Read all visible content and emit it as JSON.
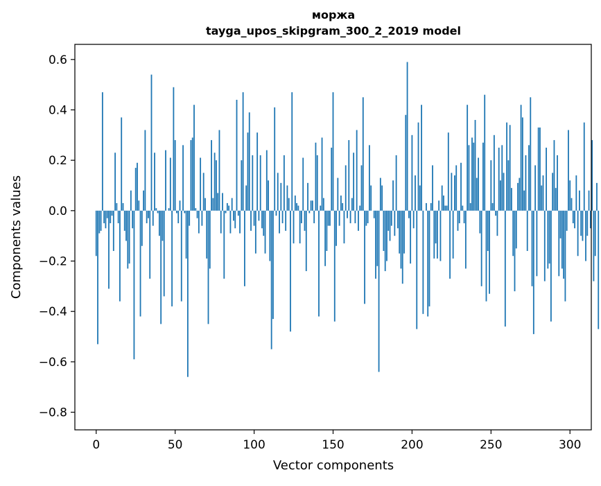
{
  "chart_data": {
    "type": "bar",
    "title": "моржа",
    "subtitle": "tayga_upos_skipgram_300_2_2019 model",
    "xlabel": "Vector components",
    "ylabel": "Components values",
    "xlim": [
      -13.5,
      313.5
    ],
    "ylim": [
      -0.87,
      0.66
    ],
    "xticks": [
      0,
      50,
      100,
      150,
      200,
      250,
      300
    ],
    "xtick_labels": [
      "0",
      "50",
      "100",
      "150",
      "200",
      "250",
      "300"
    ],
    "yticks": [
      -0.8,
      -0.6,
      -0.4,
      -0.2,
      0.0,
      0.2,
      0.4,
      0.6
    ],
    "ytick_labels": [
      "−0.8",
      "−0.6",
      "−0.4",
      "−0.2",
      "0.0",
      "0.2",
      "0.4",
      "0.6"
    ],
    "bar_color": "#1f77b4",
    "series": [
      {
        "name": "моржа",
        "values": [
          -0.18,
          -0.53,
          -0.09,
          -0.08,
          0.47,
          -0.05,
          -0.07,
          -0.03,
          -0.31,
          -0.05,
          -0.02,
          -0.16,
          0.23,
          0.03,
          -0.05,
          -0.36,
          0.37,
          0.03,
          -0.08,
          -0.12,
          -0.23,
          -0.21,
          0.08,
          -0.07,
          -0.59,
          0.17,
          0.19,
          0.04,
          -0.42,
          -0.14,
          0.08,
          0.32,
          -0.05,
          -0.03,
          -0.27,
          0.54,
          -0.06,
          0.23,
          0.01,
          -0.01,
          -0.1,
          -0.45,
          -0.12,
          -0.34,
          0.24,
          0.0,
          0.01,
          0.21,
          -0.38,
          0.49,
          0.28,
          -0.01,
          -0.05,
          0.04,
          -0.36,
          0.26,
          -0.01,
          -0.19,
          -0.66,
          -0.06,
          0.28,
          0.29,
          0.42,
          0.01,
          -0.03,
          -0.09,
          0.21,
          -0.06,
          0.15,
          0.05,
          -0.19,
          -0.45,
          -0.23,
          0.28,
          0.05,
          0.23,
          0.2,
          0.07,
          0.32,
          -0.09,
          0.07,
          -0.27,
          -0.01,
          0.03,
          0.02,
          -0.09,
          0.05,
          -0.04,
          -0.07,
          0.44,
          -0.02,
          -0.09,
          0.2,
          0.47,
          -0.3,
          0.1,
          0.31,
          0.39,
          -0.08,
          0.22,
          -0.06,
          -0.17,
          0.31,
          -0.04,
          0.22,
          -0.07,
          -0.1,
          -0.17,
          0.24,
          0.12,
          -0.2,
          -0.55,
          -0.43,
          0.41,
          -0.02,
          0.15,
          -0.09,
          0.11,
          -0.05,
          0.22,
          -0.08,
          0.1,
          0.05,
          -0.48,
          0.47,
          -0.13,
          0.06,
          0.03,
          0.02,
          -0.13,
          -0.05,
          0.21,
          -0.08,
          -0.24,
          0.11,
          -0.01,
          0.04,
          0.04,
          -0.05,
          0.27,
          0.22,
          -0.42,
          0.02,
          0.29,
          0.05,
          -0.22,
          -0.16,
          -0.06,
          -0.06,
          0.25,
          0.47,
          -0.44,
          -0.14,
          0.13,
          -0.06,
          0.06,
          0.03,
          -0.13,
          0.18,
          -0.03,
          0.28,
          -0.05,
          0.05,
          0.23,
          -0.05,
          0.32,
          -0.08,
          0.02,
          0.18,
          0.45,
          -0.37,
          -0.06,
          -0.05,
          0.26,
          0.1,
          0.0,
          -0.03,
          -0.27,
          -0.22,
          -0.64,
          0.13,
          0.1,
          -0.16,
          -0.24,
          -0.2,
          -0.08,
          -0.12,
          -0.06,
          0.12,
          -0.1,
          0.22,
          -0.07,
          -0.17,
          -0.23,
          -0.29,
          -0.17,
          0.38,
          0.59,
          -0.03,
          -0.21,
          0.3,
          -0.07,
          0.14,
          -0.47,
          0.35,
          0.1,
          0.42,
          -0.41,
          0.0,
          0.03,
          -0.42,
          -0.38,
          0.03,
          0.18,
          -0.19,
          -0.13,
          -0.19,
          0.04,
          -0.2,
          0.1,
          0.06,
          0.02,
          0.02,
          0.31,
          -0.27,
          0.15,
          -0.19,
          0.14,
          0.18,
          -0.08,
          -0.05,
          0.19,
          0.02,
          -0.05,
          -0.23,
          0.42,
          0.26,
          0.03,
          0.29,
          0.27,
          0.36,
          0.13,
          0.21,
          -0.09,
          -0.3,
          0.27,
          0.46,
          -0.36,
          -0.16,
          -0.33,
          0.2,
          0.03,
          0.3,
          -0.02,
          -0.1,
          0.25,
          0.12,
          0.26,
          0.15,
          -0.46,
          0.35,
          0.2,
          0.34,
          0.09,
          -0.18,
          -0.32,
          -0.15,
          0.11,
          0.13,
          0.42,
          0.37,
          0.08,
          0.22,
          -0.16,
          0.26,
          0.45,
          -0.3,
          -0.49,
          0.18,
          -0.26,
          0.33,
          0.33,
          0.1,
          0.14,
          -0.28,
          0.25,
          -0.23,
          -0.21,
          -0.44,
          0.15,
          0.28,
          0.09,
          0.22,
          -0.26,
          -0.11,
          -0.23,
          -0.27,
          -0.36,
          -0.08,
          0.32,
          0.12,
          0.05,
          -0.05,
          -0.07,
          0.14,
          -0.18,
          0.08,
          -0.1,
          -0.12,
          0.35,
          -0.2,
          -0.1,
          0.08,
          -0.07,
          0.28,
          -0.28,
          -0.18,
          0.11,
          -0.47
        ]
      }
    ]
  }
}
